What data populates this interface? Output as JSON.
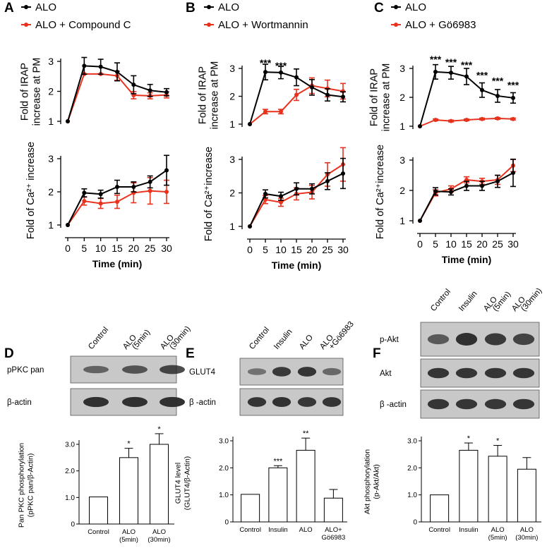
{
  "colors": {
    "black_series": "#000000",
    "red_series": "#e8321e",
    "blot_bg": "#c8c8c8",
    "band": "#2a2a2a"
  },
  "top_panels": [
    {
      "letter": "A",
      "legend": [
        "ALO",
        "ALO + Compound C"
      ]
    },
    {
      "letter": "B",
      "legend": [
        "ALO",
        "ALO + Wortmannin"
      ]
    },
    {
      "letter": "C",
      "legend": [
        "ALO",
        "ALO + Gö6983"
      ]
    }
  ],
  "bottom_panels": [
    {
      "letter": "D",
      "columns": [
        "Control",
        "ALO\n(5min)",
        "ALO\n(30min)"
      ],
      "blot_labels": [
        "pPKC pan",
        "β-actin"
      ]
    },
    {
      "letter": "E",
      "columns": [
        "Control",
        "Insulin",
        "ALO",
        "ALO\n+Gö6983"
      ],
      "blot_labels": [
        "GLUT4",
        "β -actin"
      ]
    },
    {
      "letter": "F",
      "columns": [
        "Control",
        "Insulin",
        "ALO\n(5min)",
        "ALO\n(30min)"
      ],
      "blot_labels": [
        "p-Akt",
        "Akt",
        "β -actin"
      ]
    }
  ],
  "chart_data": [
    {
      "id": "A-top",
      "type": "line",
      "ylabel": [
        "Fold of IRAP",
        "increase at PM"
      ],
      "xlabel": "",
      "ylim": [
        1,
        3
      ],
      "yticks": [
        1,
        2,
        3
      ],
      "x": [
        0,
        5,
        10,
        15,
        20,
        25,
        30
      ],
      "series": [
        {
          "name": "ALO",
          "color": "black",
          "values": [
            1.0,
            2.85,
            2.82,
            2.65,
            2.22,
            2.03,
            1.97
          ],
          "err": [
            0,
            0.28,
            0.25,
            0.3,
            0.3,
            0.2,
            0.12
          ]
        },
        {
          "name": "ALO + Compound C",
          "color": "red",
          "values": [
            1.0,
            2.58,
            2.58,
            2.52,
            1.87,
            1.85,
            1.88
          ],
          "err": [
            0,
            0,
            0,
            0.15,
            0.12,
            0.1,
            0.1
          ]
        }
      ],
      "stars": []
    },
    {
      "id": "A-bottom",
      "type": "line",
      "ylabel": [
        "Fold of Ca²⁺ increase"
      ],
      "xlabel": "Time (min)",
      "ylim": [
        1,
        3
      ],
      "yticks": [
        1,
        2,
        3
      ],
      "x": [
        0,
        5,
        10,
        15,
        20,
        25,
        30
      ],
      "series": [
        {
          "name": "ALO",
          "color": "black",
          "values": [
            1.0,
            1.97,
            1.93,
            2.15,
            2.15,
            2.3,
            2.65
          ],
          "err": [
            0,
            0.12,
            0.12,
            0.2,
            0.15,
            0.18,
            0.45
          ]
        },
        {
          "name": "ALO + Compound C",
          "color": "red",
          "values": [
            1.0,
            1.72,
            1.65,
            1.7,
            1.97,
            2.03,
            2.0
          ],
          "err": [
            0,
            0.12,
            0.15,
            0.2,
            0.3,
            0.4,
            0.35
          ]
        }
      ],
      "stars": []
    },
    {
      "id": "B-top",
      "type": "line",
      "ylabel": [
        "Fold of IRAP",
        "increase at PM"
      ],
      "xlabel": "",
      "ylim": [
        1,
        3
      ],
      "yticks": [
        1,
        2,
        3
      ],
      "x": [
        0,
        5,
        10,
        15,
        20,
        25,
        30
      ],
      "series": [
        {
          "name": "ALO",
          "color": "black",
          "values": [
            1.0,
            2.87,
            2.85,
            2.68,
            2.32,
            2.05,
            1.98
          ],
          "err": [
            0,
            0.28,
            0.22,
            0.3,
            0.28,
            0.22,
            0.18
          ]
        },
        {
          "name": "ALO + Wortmannin",
          "color": "red",
          "values": [
            1.0,
            1.45,
            1.45,
            2.05,
            2.38,
            2.28,
            2.18
          ],
          "err": [
            0,
            0.08,
            0.08,
            0.2,
            0.28,
            0.3,
            0.28
          ]
        }
      ],
      "stars": [
        {
          "x": 5,
          "text": "***",
          "y": 3.08
        },
        {
          "x": 10,
          "text": "***",
          "y": 2.98
        }
      ]
    },
    {
      "id": "B-bottom",
      "type": "line",
      "ylabel": [
        "Fold of Ca²⁺increase"
      ],
      "xlabel": "Time (min)",
      "ylim": [
        1,
        3
      ],
      "yticks": [
        1,
        2,
        3
      ],
      "x": [
        0,
        5,
        10,
        15,
        20,
        25,
        30
      ],
      "series": [
        {
          "name": "ALO",
          "color": "black",
          "values": [
            1.0,
            1.97,
            1.9,
            2.12,
            2.12,
            2.35,
            2.58
          ],
          "err": [
            0,
            0.12,
            0.12,
            0.18,
            0.15,
            0.25,
            0.45
          ]
        },
        {
          "name": "ALO + Wortmannin",
          "color": "red",
          "values": [
            1.0,
            1.8,
            1.72,
            1.97,
            2.02,
            2.55,
            2.85
          ],
          "err": [
            0,
            0.12,
            0.12,
            0.18,
            0.2,
            0.35,
            0.5
          ]
        }
      ],
      "stars": []
    },
    {
      "id": "C-top",
      "type": "line",
      "ylabel": [
        "Fold of IRAP",
        "increase at PM"
      ],
      "xlabel": "",
      "ylim": [
        1,
        3
      ],
      "yticks": [
        1,
        2,
        3
      ],
      "x": [
        0,
        5,
        10,
        15,
        20,
        25,
        30
      ],
      "series": [
        {
          "name": "ALO",
          "color": "black",
          "values": [
            1.0,
            2.88,
            2.85,
            2.72,
            2.25,
            2.05,
            1.98
          ],
          "err": [
            0,
            0.25,
            0.22,
            0.28,
            0.25,
            0.22,
            0.18
          ]
        },
        {
          "name": "ALO + Gö6983",
          "color": "red",
          "values": [
            1.0,
            1.22,
            1.18,
            1.22,
            1.25,
            1.27,
            1.25
          ],
          "err": [
            0,
            0.03,
            0.03,
            0.03,
            0.03,
            0.03,
            0.03
          ]
        }
      ],
      "stars": [
        {
          "x": 5,
          "text": "***",
          "y": 3.2
        },
        {
          "x": 10,
          "text": "***",
          "y": 3.1
        },
        {
          "x": 15,
          "text": "***",
          "y": 3.0
        },
        {
          "x": 20,
          "text": "***",
          "y": 2.65
        },
        {
          "x": 25,
          "text": "***",
          "y": 2.45
        },
        {
          "x": 30,
          "text": "***",
          "y": 2.3
        }
      ]
    },
    {
      "id": "C-bottom",
      "type": "line",
      "ylabel": [
        "Fold of Ca²⁺increase"
      ],
      "xlabel": "Time (min)",
      "ylim": [
        1,
        3
      ],
      "yticks": [
        1,
        2,
        3
      ],
      "x": [
        0,
        5,
        10,
        15,
        20,
        25,
        30
      ],
      "series": [
        {
          "name": "ALO",
          "color": "black",
          "values": [
            1.0,
            1.97,
            1.95,
            2.15,
            2.15,
            2.3,
            2.58
          ],
          "err": [
            0,
            0.12,
            0.1,
            0.15,
            0.15,
            0.2,
            0.45
          ]
        },
        {
          "name": "ALO + Gö6983",
          "color": "red",
          "values": [
            1.0,
            1.92,
            2.05,
            2.35,
            2.3,
            2.35,
            2.82
          ],
          "err": [
            0,
            0.1,
            0.1,
            0.1,
            0.1,
            0.15,
            0.2
          ]
        }
      ],
      "stars": []
    },
    {
      "id": "D-bar",
      "type": "bar",
      "ylabel": [
        "Pan PKC phosphorylation",
        "(pPKC pan/β-Actin)"
      ],
      "ylim": [
        0,
        3.0
      ],
      "yticks": [
        0,
        1,
        2,
        3
      ],
      "ytick_labels": [
        "0",
        "1.0",
        "2.0",
        "3.0"
      ],
      "categories": [
        "Control",
        "ALO\n(5min)",
        "ALO\n(30min)"
      ],
      "values": [
        1.02,
        2.5,
        3.0
      ],
      "err": [
        0,
        0.35,
        0.4
      ],
      "stars": [
        "",
        "*",
        "*"
      ]
    },
    {
      "id": "E-bar",
      "type": "bar",
      "ylabel": [
        "GLUT4 level",
        "(GLUT4/β-Actin)"
      ],
      "ylim": [
        0,
        3.0
      ],
      "yticks": [
        0,
        1,
        2,
        3
      ],
      "ytick_labels": [
        "0",
        "1.0",
        "2.0",
        "3.0"
      ],
      "categories": [
        "Control",
        "Insulin",
        "ALO",
        "ALO+\nGö6983"
      ],
      "values": [
        1.02,
        2.0,
        2.65,
        0.88
      ],
      "err": [
        0,
        0.08,
        0.45,
        0.32
      ],
      "stars": [
        "",
        "***",
        "**",
        ""
      ]
    },
    {
      "id": "F-bar",
      "type": "bar",
      "ylabel": [
        "Akt phosphorylation",
        "(p-Akt/Akt)"
      ],
      "ylim": [
        0,
        3.0
      ],
      "yticks": [
        0,
        1,
        2,
        3
      ],
      "ytick_labels": [
        "0",
        "1.0",
        "2.0",
        "3.0"
      ],
      "categories": [
        "Control",
        "Insulin",
        "ALO\n(5min)",
        "ALO\n(30min)"
      ],
      "values": [
        1.0,
        2.65,
        2.43,
        1.95
      ],
      "err": [
        0,
        0.27,
        0.4,
        0.43
      ],
      "stars": [
        "",
        "*",
        "*",
        ""
      ]
    }
  ]
}
